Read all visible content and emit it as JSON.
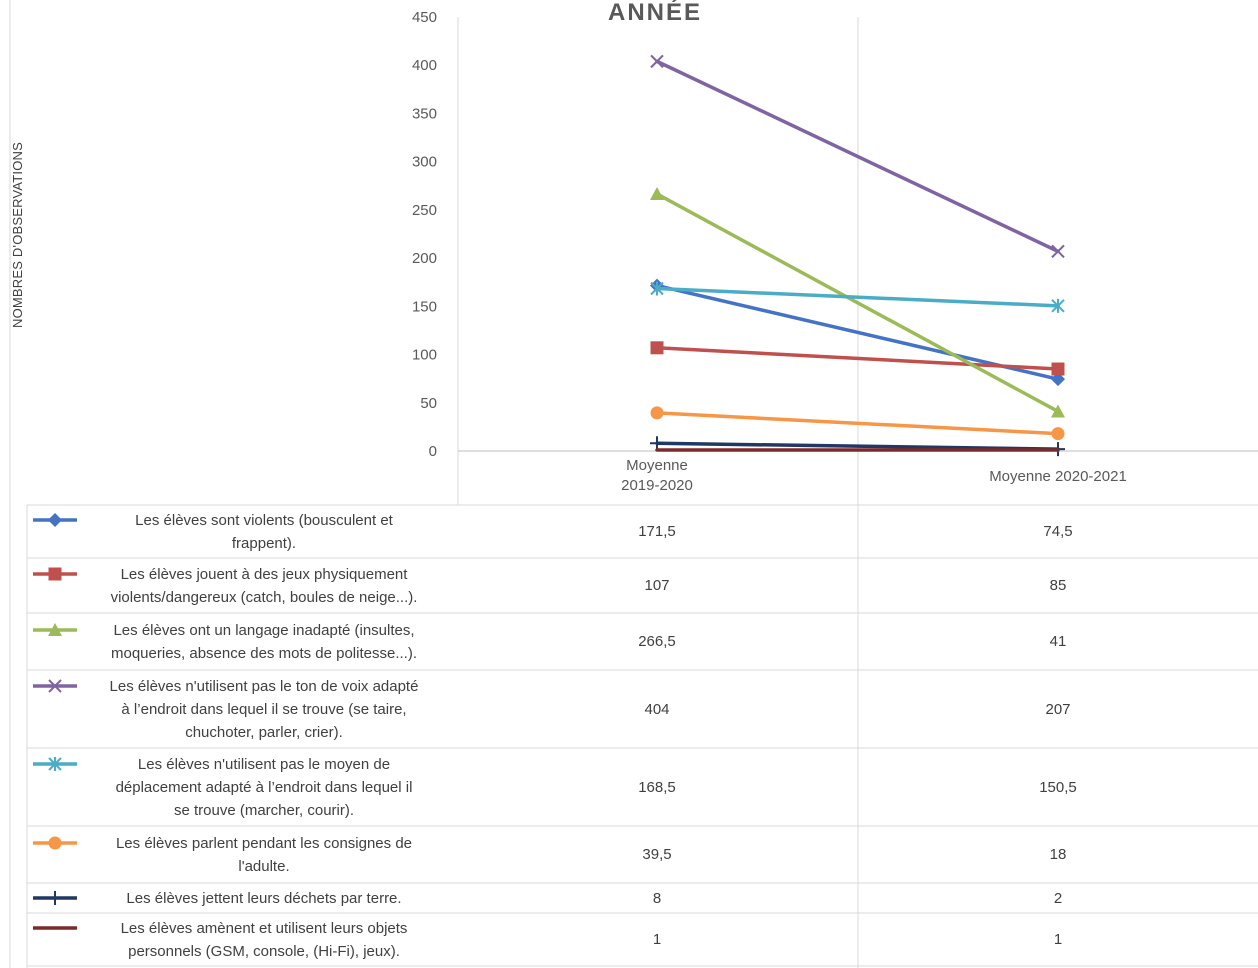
{
  "chart_data": {
    "type": "line",
    "title": "ANNÉE",
    "ylabel": "NOMBRES D'OBSERVATIONS",
    "xlabel": "",
    "ylim": [
      0,
      450
    ],
    "yticks": [
      "0",
      "50",
      "100",
      "150",
      "200",
      "250",
      "300",
      "350",
      "400",
      "450"
    ],
    "categories": [
      "Moyenne 2019-2020",
      "Moyenne 2020-2021"
    ],
    "category_lines": [
      [
        "Moyenne",
        "2019-2020"
      ],
      [
        "Moyenne 2020-2021"
      ]
    ],
    "grid": "vertical",
    "legend": "data-table",
    "series": [
      {
        "name": "Les élèves sont violents  (bousculent et frappent).",
        "lines": [
          "Les élèves sont violents  (bousculent et",
          "frappent)."
        ],
        "values": [
          171.5,
          74.5
        ],
        "labels": [
          "171,5",
          "74,5"
        ],
        "color": "#4472c4",
        "marker": "diamond"
      },
      {
        "name": "Les élèves jouent à des jeux physiquement violents/dangereux (catch, boules de neige...).",
        "lines": [
          "Les élèves jouent à des jeux physiquement",
          "violents/dangereux (catch, boules de neige...)."
        ],
        "values": [
          107,
          85
        ],
        "labels": [
          "107",
          "85"
        ],
        "color": "#c0504d",
        "marker": "square"
      },
      {
        "name": "Les élèves ont un langage inadapté (insultes, moqueries, absence des mots de politesse...).",
        "lines": [
          "Les élèves ont un langage inadapté (insultes,",
          "moqueries, absence des mots de politesse...)."
        ],
        "values": [
          266.5,
          41
        ],
        "labels": [
          "266,5",
          "41"
        ],
        "color": "#9bbb59",
        "marker": "triangle"
      },
      {
        "name": "Les élèves n'utilisent pas le ton de voix adapté à l’endroit dans lequel il se trouve (se taire, chuchoter, parler, crier).",
        "lines": [
          "Les élèves n'utilisent pas le ton de voix adapté",
          "à l’endroit dans lequel il se trouve (se taire,",
          "chuchoter, parler, crier)."
        ],
        "values": [
          404,
          207
        ],
        "labels": [
          "404",
          "207"
        ],
        "color": "#8064a2",
        "marker": "x"
      },
      {
        "name": "Les élèves n'utilisent pas le moyen de déplacement adapté à l’endroit dans lequel il se trouve (marcher, courir).",
        "lines": [
          "Les élèves n'utilisent pas le moyen de",
          "déplacement adapté à l’endroit dans lequel il",
          "se trouve (marcher, courir)."
        ],
        "values": [
          168.5,
          150.5
        ],
        "labels": [
          "168,5",
          "150,5"
        ],
        "color": "#4bacc6",
        "marker": "star"
      },
      {
        "name": "Les élèves parlent pendant les consignes de l'adulte.",
        "lines": [
          "Les élèves parlent pendant les consignes de",
          "l'adulte."
        ],
        "values": [
          39.5,
          18
        ],
        "labels": [
          "39,5",
          "18"
        ],
        "color": "#f79646",
        "marker": "circle"
      },
      {
        "name": "Les élèves jettent leurs déchets par terre.",
        "lines": [
          "Les élèves jettent leurs déchets par terre."
        ],
        "values": [
          8,
          2
        ],
        "labels": [
          "8",
          "2"
        ],
        "color": "#1f3864",
        "marker": "plus"
      },
      {
        "name": "Les élèves amènent et utilisent leurs objets personnels (GSM, console, (Hi-Fi), jeux).",
        "lines": [
          "Les élèves amènent et utilisent leurs objets",
          "personnels (GSM, console, (Hi-Fi), jeux)."
        ],
        "values": [
          1,
          1
        ],
        "labels": [
          "1",
          "1"
        ],
        "color": "#7b2a2a",
        "marker": "none"
      }
    ]
  }
}
